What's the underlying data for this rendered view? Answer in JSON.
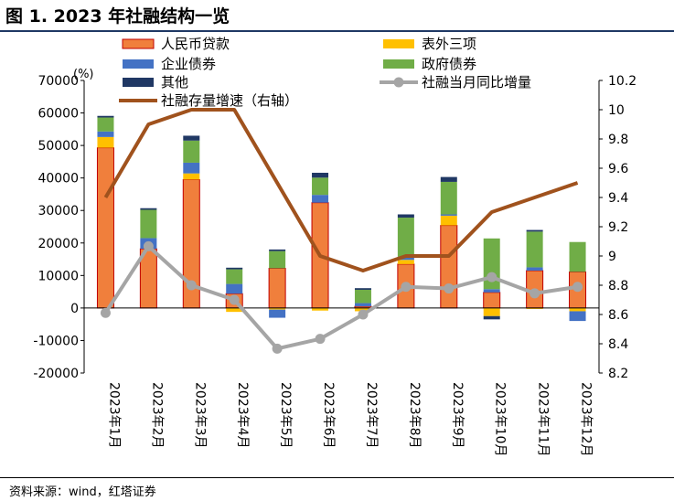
{
  "figure": {
    "title": "图 1. 2023 年社融结构一览",
    "source": "资料来源：wind，红塔证券"
  },
  "colors": {
    "rmb_loans": "#f07f3c",
    "rmb_loans_border": "#c00000",
    "off_balance": "#ffc000",
    "corp_bonds": "#4472c4",
    "gov_bonds": "#70ad47",
    "other": "#203864",
    "tsf_yoy": "#a5a5a5",
    "tsf_growth": "#a0521d"
  },
  "chart_data": {
    "type": "bar",
    "unit_label": "(%)",
    "categories": [
      "2023年1月",
      "2023年2月",
      "2023年3月",
      "2023年4月",
      "2023年5月",
      "2023年6月",
      "2023年7月",
      "2023年8月",
      "2023年9月",
      "2023年10月",
      "2023年11月",
      "2023年12月"
    ],
    "y_left": {
      "lim": [
        -20000,
        70000
      ],
      "ticks": [
        "70000",
        "60000",
        "50000",
        "40000",
        "30000",
        "20000",
        "10000",
        "0",
        "-10000",
        "-20000"
      ]
    },
    "y_right": {
      "lim": [
        8.2,
        10.2
      ],
      "ticks": [
        "10.2",
        "10",
        "9.8",
        "9.6",
        "9.4",
        "9.2",
        "9",
        "8.8",
        "8.6",
        "8.4",
        "8.2"
      ]
    },
    "stack_series": [
      {
        "name": "人民币贷款",
        "values": [
          49300,
          18200,
          39500,
          4400,
          12200,
          32400,
          500,
          13500,
          25400,
          4800,
          11500,
          11100
        ]
      },
      {
        "name": "表外三项",
        "values": [
          3300,
          0,
          1900,
          -1200,
          -500,
          -800,
          -1000,
          1300,
          3000,
          -2500,
          -300,
          -1000
        ]
      },
      {
        "name": "企业债券",
        "values": [
          1700,
          3300,
          3300,
          3000,
          -2500,
          2400,
          1000,
          1000,
          400,
          1000,
          1000,
          -3000
        ]
      },
      {
        "name": "政府债券",
        "values": [
          4300,
          8700,
          6800,
          4500,
          5300,
          5300,
          4100,
          12000,
          10000,
          15600,
          11000,
          9200
        ]
      },
      {
        "name": "其他",
        "values": [
          500,
          500,
          1500,
          500,
          500,
          1500,
          500,
          1000,
          1500,
          -1000,
          500,
          0
        ]
      }
    ],
    "line_series": [
      {
        "name": "社融当月同比增量",
        "axis": "left",
        "values": [
          -1500,
          19000,
          7000,
          2500,
          -12500,
          -9500,
          -2000,
          6500,
          6000,
          9500,
          4500,
          6500
        ]
      },
      {
        "name": "社融存量增速（右轴）",
        "axis": "right",
        "values": [
          9.4,
          9.9,
          10.0,
          10.0,
          9.5,
          9.0,
          8.9,
          9.0,
          9.0,
          9.3,
          9.4,
          9.5
        ]
      }
    ],
    "legend_position": "top",
    "grid": false
  }
}
